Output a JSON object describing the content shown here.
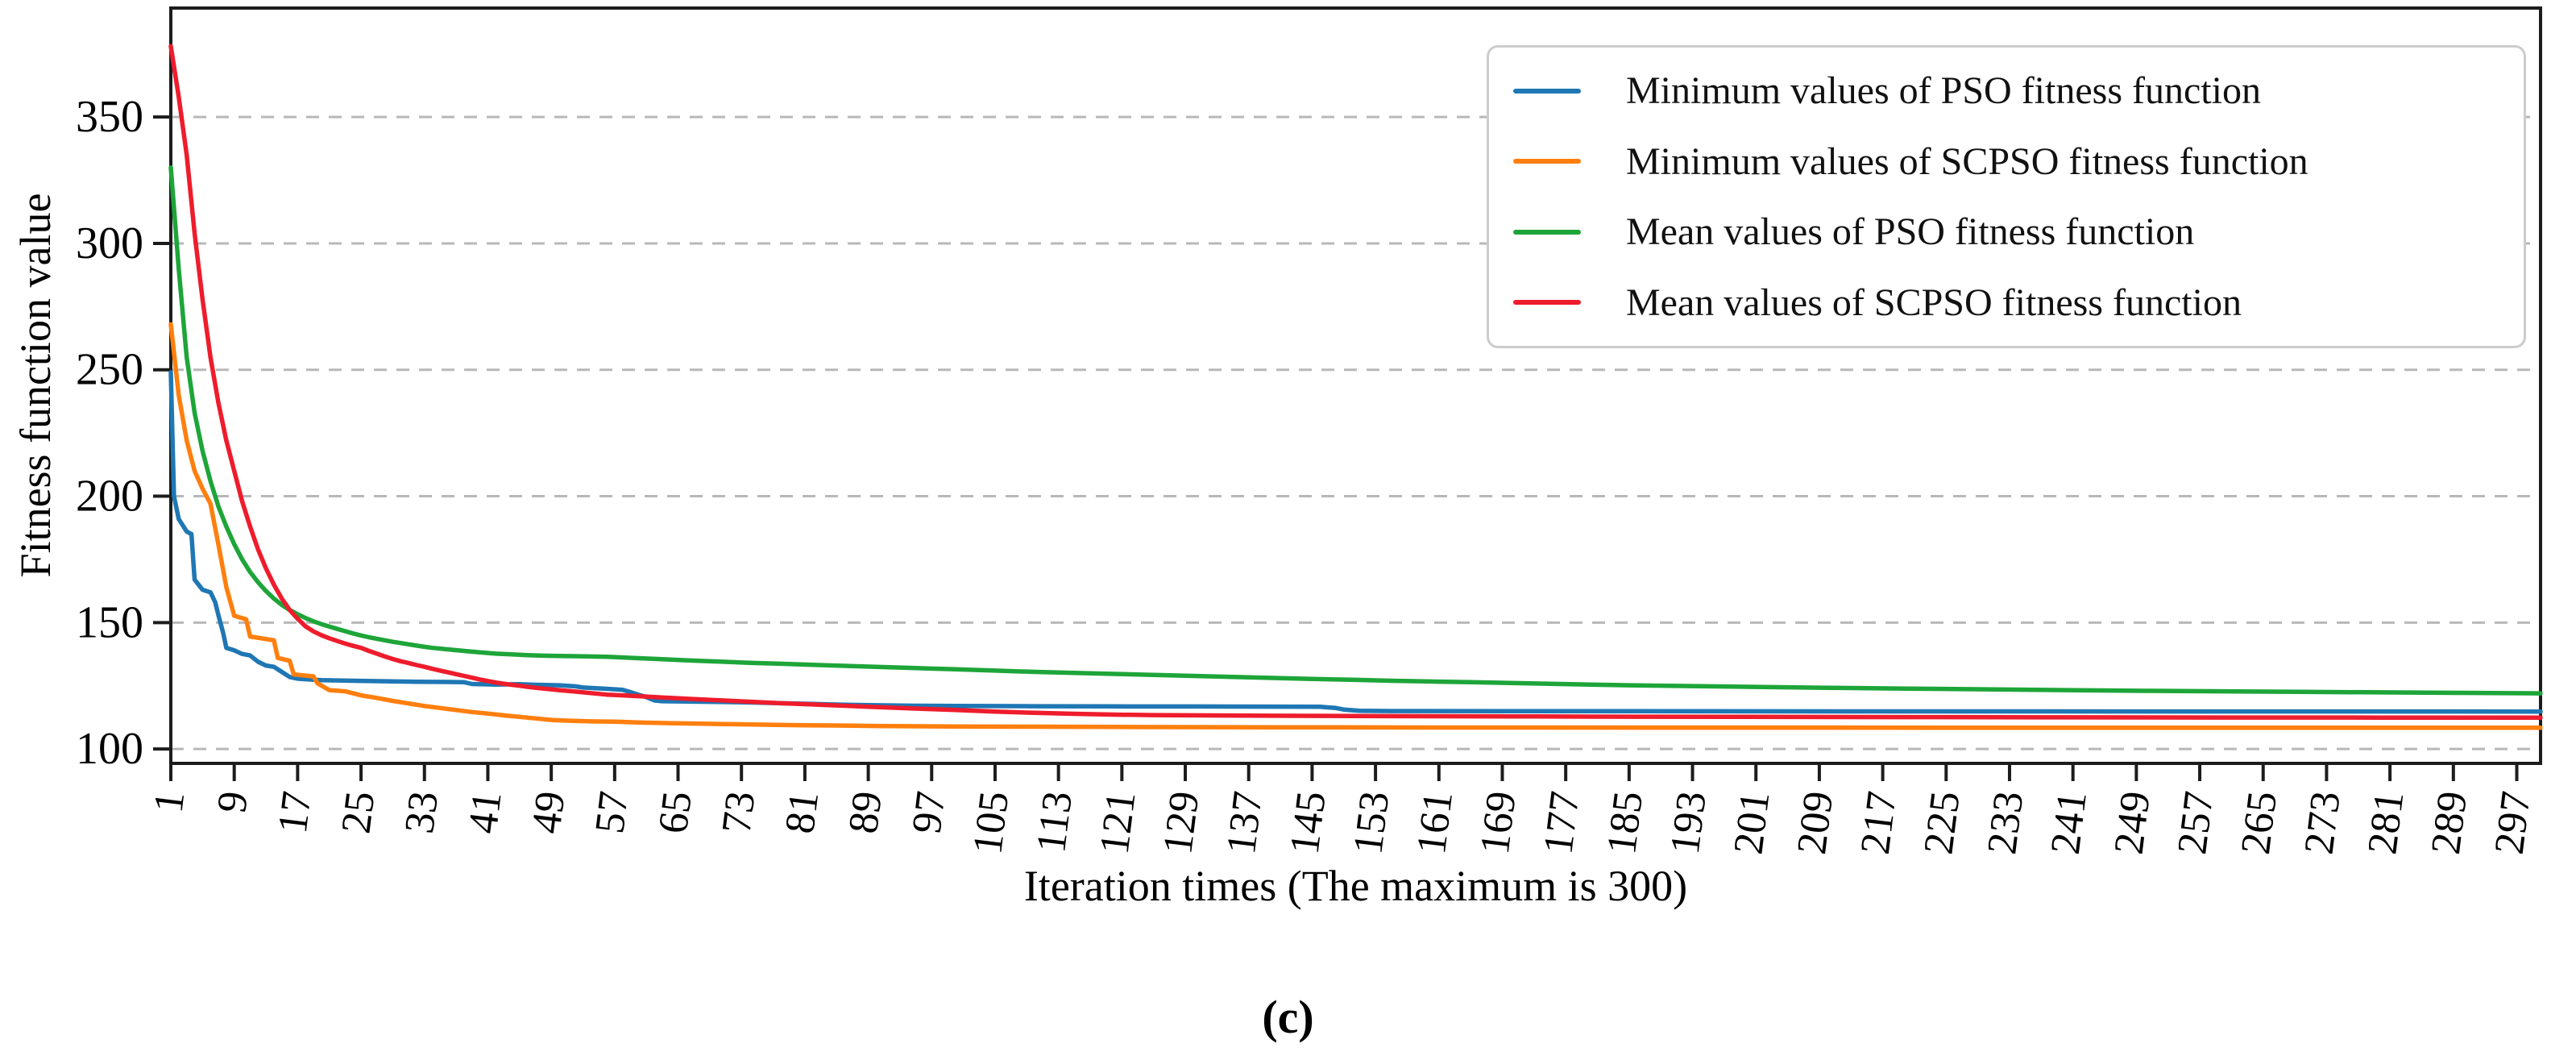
{
  "figure": {
    "caption": "(c)",
    "background_color": "#ffffff"
  },
  "chart_data": {
    "type": "line",
    "title": "",
    "xlabel": "Iteration times (The maximum is 300)",
    "ylabel": "Fitness function value",
    "xlim": [
      1,
      300
    ],
    "ylim": [
      94.3,
      393.1
    ],
    "xticks": [
      1,
      9,
      17,
      25,
      33,
      41,
      49,
      57,
      65,
      73,
      81,
      89,
      97,
      105,
      113,
      121,
      129,
      137,
      145,
      153,
      161,
      169,
      177,
      185,
      193,
      201,
      209,
      217,
      225,
      233,
      241,
      249,
      257,
      265,
      273,
      281,
      289,
      297
    ],
    "yticks": [
      100,
      150,
      200,
      250,
      300,
      350
    ],
    "grid": {
      "axis": "y",
      "style": "dashed",
      "color": "#b8b8b8"
    },
    "axis_color": "#1c1c1c",
    "legend_position": "upper right",
    "series": [
      {
        "name": "Minimum values of PSO fitness function",
        "color": "#1f77b4",
        "points": [
          [
            1,
            249
          ],
          [
            1.4,
            200
          ],
          [
            2,
            191
          ],
          [
            3,
            186
          ],
          [
            3.6,
            185
          ],
          [
            4,
            167
          ],
          [
            5,
            163
          ],
          [
            6,
            162
          ],
          [
            6.6,
            158
          ],
          [
            7,
            153
          ],
          [
            7.6,
            146
          ],
          [
            8,
            140
          ],
          [
            9,
            139
          ],
          [
            10,
            137.6
          ],
          [
            11,
            137
          ],
          [
            12,
            134.5
          ],
          [
            13,
            133
          ],
          [
            14,
            132.5
          ],
          [
            15,
            130.5
          ],
          [
            16,
            128.5
          ],
          [
            17,
            127.8
          ],
          [
            18,
            127.6
          ],
          [
            20,
            127.2
          ],
          [
            24,
            127
          ],
          [
            28,
            126.8
          ],
          [
            32,
            126.6
          ],
          [
            36,
            126.5
          ],
          [
            38,
            126.4
          ],
          [
            39,
            125.7
          ],
          [
            42,
            125.5
          ],
          [
            45,
            125.6
          ],
          [
            47,
            125.4
          ],
          [
            50,
            125.2
          ],
          [
            52,
            124.8
          ],
          [
            53,
            124.3
          ],
          [
            56,
            123.8
          ],
          [
            58,
            123.4
          ],
          [
            59,
            122.5
          ],
          [
            60,
            121.5
          ],
          [
            61,
            120.5
          ],
          [
            62,
            119.2
          ],
          [
            63,
            118.9
          ],
          [
            66,
            118.8
          ],
          [
            70,
            118.6
          ],
          [
            74,
            118.4
          ],
          [
            78,
            118.1
          ],
          [
            82,
            117.8
          ],
          [
            86,
            117.5
          ],
          [
            90,
            117.3
          ],
          [
            95,
            117.1
          ],
          [
            100,
            117
          ],
          [
            110,
            116.9
          ],
          [
            120,
            116.85
          ],
          [
            130,
            116.8
          ],
          [
            140,
            116.75
          ],
          [
            146,
            116.7
          ],
          [
            148,
            116.2
          ],
          [
            149,
            115.6
          ],
          [
            151,
            115.1
          ],
          [
            155,
            115
          ],
          [
            170,
            114.95
          ],
          [
            200,
            114.9
          ],
          [
            250,
            114.85
          ],
          [
            300,
            114.8
          ]
        ]
      },
      {
        "name": "Minimum values of SCPSO fitness function",
        "color": "#ff7f0e",
        "points": [
          [
            1,
            268
          ],
          [
            2,
            240
          ],
          [
            3,
            222
          ],
          [
            4,
            210
          ],
          [
            5,
            203
          ],
          [
            6,
            197
          ],
          [
            7,
            181
          ],
          [
            8,
            164
          ],
          [
            9,
            152.7
          ],
          [
            10.5,
            151.3
          ],
          [
            11,
            144.5
          ],
          [
            14,
            143
          ],
          [
            14.5,
            136
          ],
          [
            16,
            134.9
          ],
          [
            16.5,
            129.5
          ],
          [
            19,
            128.7
          ],
          [
            19.5,
            126
          ],
          [
            21,
            123.3
          ],
          [
            23,
            122.8
          ],
          [
            24,
            122
          ],
          [
            25,
            121.2
          ],
          [
            27,
            120.2
          ],
          [
            29,
            119
          ],
          [
            31,
            118
          ],
          [
            33,
            117
          ],
          [
            35,
            116.2
          ],
          [
            37,
            115.4
          ],
          [
            39,
            114.6
          ],
          [
            41,
            114
          ],
          [
            43,
            113.3
          ],
          [
            45,
            112.7
          ],
          [
            47,
            112.1
          ],
          [
            49,
            111.5
          ],
          [
            51,
            111.2
          ],
          [
            54,
            110.9
          ],
          [
            57,
            110.8
          ],
          [
            60,
            110.5
          ],
          [
            64,
            110.2
          ],
          [
            68,
            110
          ],
          [
            72,
            109.8
          ],
          [
            76,
            109.6
          ],
          [
            80,
            109.4
          ],
          [
            85,
            109.3
          ],
          [
            90,
            109.1
          ],
          [
            100,
            108.9
          ],
          [
            110,
            108.8
          ],
          [
            120,
            108.7
          ],
          [
            140,
            108.6
          ],
          [
            160,
            108.5
          ],
          [
            200,
            108.45
          ],
          [
            250,
            108.4
          ],
          [
            300,
            108.4
          ]
        ]
      },
      {
        "name": "Mean values of PSO fitness function",
        "color": "#1ea539",
        "points": [
          [
            1,
            330
          ],
          [
            2,
            290
          ],
          [
            3,
            255
          ],
          [
            4,
            233
          ],
          [
            5,
            218
          ],
          [
            6,
            206
          ],
          [
            7,
            196
          ],
          [
            8,
            188
          ],
          [
            9,
            181
          ],
          [
            10,
            175
          ],
          [
            11,
            170
          ],
          [
            12,
            166
          ],
          [
            13,
            162.5
          ],
          [
            14,
            159.5
          ],
          [
            15,
            157
          ],
          [
            16,
            155
          ],
          [
            17,
            153.3
          ],
          [
            18,
            151.8
          ],
          [
            19,
            150.5
          ],
          [
            20,
            149.4
          ],
          [
            21,
            148.4
          ],
          [
            22,
            147.5
          ],
          [
            23,
            146.6
          ],
          [
            24,
            145.7
          ],
          [
            25,
            144.9
          ],
          [
            26,
            144.2
          ],
          [
            27,
            143.6
          ],
          [
            28,
            143
          ],
          [
            29,
            142.4
          ],
          [
            30,
            141.9
          ],
          [
            31,
            141.4
          ],
          [
            32,
            140.9
          ],
          [
            33,
            140.4
          ],
          [
            34,
            140
          ],
          [
            36,
            139.4
          ],
          [
            38,
            138.8
          ],
          [
            40,
            138.2
          ],
          [
            42,
            137.7
          ],
          [
            44,
            137.4
          ],
          [
            46,
            137.1
          ],
          [
            48,
            136.9
          ],
          [
            50,
            136.8
          ],
          [
            52,
            136.7
          ],
          [
            54,
            136.6
          ],
          [
            56,
            136.5
          ],
          [
            58,
            136.2
          ],
          [
            60,
            135.9
          ],
          [
            63,
            135.5
          ],
          [
            66,
            135.1
          ],
          [
            70,
            134.6
          ],
          [
            74,
            134.1
          ],
          [
            78,
            133.7
          ],
          [
            82,
            133.3
          ],
          [
            86,
            132.9
          ],
          [
            90,
            132.5
          ],
          [
            95,
            132
          ],
          [
            100,
            131.5
          ],
          [
            105,
            131
          ],
          [
            110,
            130.5
          ],
          [
            115,
            130.1
          ],
          [
            120,
            129.7
          ],
          [
            125,
            129.3
          ],
          [
            130,
            128.9
          ],
          [
            135,
            128.5
          ],
          [
            140,
            128.1
          ],
          [
            145,
            127.7
          ],
          [
            150,
            127.4
          ],
          [
            155,
            127
          ],
          [
            160,
            126.7
          ],
          [
            165,
            126.4
          ],
          [
            170,
            126.1
          ],
          [
            175,
            125.8
          ],
          [
            180,
            125.5
          ],
          [
            185,
            125.2
          ],
          [
            190,
            125
          ],
          [
            195,
            124.8
          ],
          [
            200,
            124.6
          ],
          [
            210,
            124.2
          ],
          [
            220,
            123.9
          ],
          [
            230,
            123.6
          ],
          [
            240,
            123.3
          ],
          [
            250,
            123
          ],
          [
            260,
            122.8
          ],
          [
            270,
            122.6
          ],
          [
            280,
            122.4
          ],
          [
            290,
            122.2
          ],
          [
            300,
            122
          ]
        ]
      },
      {
        "name": "Mean values of SCPSO fitness function",
        "color": "#ee1c2c",
        "points": [
          [
            1,
            378
          ],
          [
            2,
            358
          ],
          [
            3,
            335
          ],
          [
            4,
            304
          ],
          [
            5,
            278
          ],
          [
            6,
            255
          ],
          [
            7,
            237
          ],
          [
            8,
            222
          ],
          [
            9,
            210
          ],
          [
            10,
            198
          ],
          [
            11,
            188
          ],
          [
            12,
            179
          ],
          [
            13,
            171.5
          ],
          [
            14,
            165
          ],
          [
            15,
            159.5
          ],
          [
            16,
            155
          ],
          [
            17,
            151.5
          ],
          [
            18,
            148.5
          ],
          [
            19,
            146.5
          ],
          [
            20,
            145
          ],
          [
            21,
            143.8
          ],
          [
            22,
            142.7
          ],
          [
            23,
            141.7
          ],
          [
            24,
            140.8
          ],
          [
            25,
            140
          ],
          [
            26,
            138.8
          ],
          [
            27,
            137.7
          ],
          [
            28,
            136.6
          ],
          [
            29,
            135.6
          ],
          [
            30,
            134.7
          ],
          [
            31,
            134
          ],
          [
            32,
            133.2
          ],
          [
            33,
            132.5
          ],
          [
            34,
            131.7
          ],
          [
            35,
            131
          ],
          [
            36,
            130.3
          ],
          [
            37,
            129.6
          ],
          [
            38,
            128.9
          ],
          [
            39,
            128.2
          ],
          [
            40,
            127.5
          ],
          [
            41,
            126.9
          ],
          [
            42,
            126.3
          ],
          [
            43,
            125.8
          ],
          [
            44,
            125.4
          ],
          [
            45,
            125
          ],
          [
            46,
            124.6
          ],
          [
            47,
            124.2
          ],
          [
            48,
            123.9
          ],
          [
            49,
            123.6
          ],
          [
            50,
            123.3
          ],
          [
            52,
            122.7
          ],
          [
            54,
            122.1
          ],
          [
            56,
            121.5
          ],
          [
            58,
            121.2
          ],
          [
            60,
            120.9
          ],
          [
            63,
            120.4
          ],
          [
            66,
            119.9
          ],
          [
            70,
            119.3
          ],
          [
            74,
            118.7
          ],
          [
            78,
            118.1
          ],
          [
            82,
            117.6
          ],
          [
            86,
            117.1
          ],
          [
            90,
            116.6
          ],
          [
            95,
            116
          ],
          [
            100,
            115.4
          ],
          [
            105,
            114.8
          ],
          [
            110,
            114.3
          ],
          [
            115,
            113.9
          ],
          [
            120,
            113.6
          ],
          [
            125,
            113.4
          ],
          [
            130,
            113.3
          ],
          [
            140,
            113.15
          ],
          [
            150,
            113.05
          ],
          [
            160,
            112.95
          ],
          [
            170,
            112.9
          ],
          [
            180,
            112.8
          ],
          [
            200,
            112.7
          ],
          [
            220,
            112.6
          ],
          [
            240,
            112.5
          ],
          [
            260,
            112.45
          ],
          [
            280,
            112.4
          ],
          [
            300,
            112.4
          ]
        ]
      }
    ]
  }
}
